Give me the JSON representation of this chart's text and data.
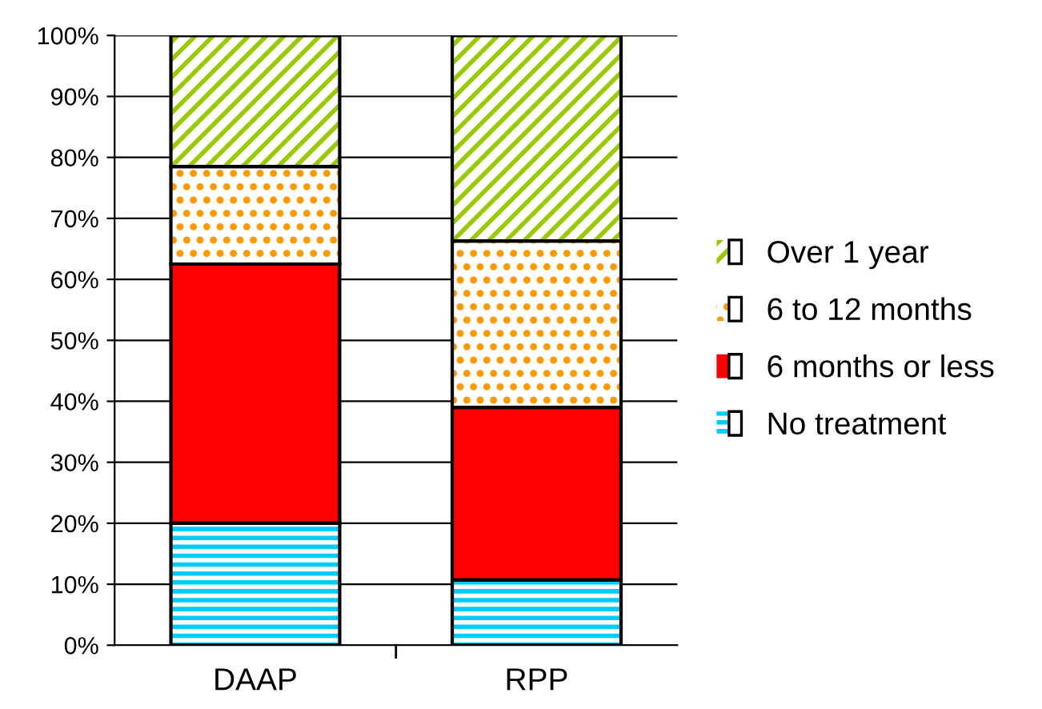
{
  "chart_data": {
    "type": "bar",
    "stacked": true,
    "categories": [
      "DAAP",
      "RPP"
    ],
    "series": [
      {
        "name": "No treatment",
        "color": "#00ccff",
        "values": [
          20,
          10.7
        ]
      },
      {
        "name": "6 months or less",
        "color": "#ff0000",
        "values": [
          42.5,
          28.3
        ]
      },
      {
        "name": "6 to 12 months",
        "color": "#ff9900",
        "values": [
          16,
          27.3
        ]
      },
      {
        "name": "Over 1 year",
        "color": "#99cc00",
        "values": [
          21.5,
          33.7
        ]
      }
    ],
    "ylim": [
      0,
      100
    ],
    "yticks": [
      {
        "value": 0,
        "label": "0%"
      },
      {
        "value": 10,
        "label": "10%"
      },
      {
        "value": 20,
        "label": "20%"
      },
      {
        "value": 30,
        "label": "30%"
      },
      {
        "value": 40,
        "label": "40%"
      },
      {
        "value": 50,
        "label": "50%"
      },
      {
        "value": 60,
        "label": "60%"
      },
      {
        "value": 70,
        "label": "70%"
      },
      {
        "value": 80,
        "label": "80%"
      },
      {
        "value": 90,
        "label": "90%"
      },
      {
        "value": 100,
        "label": "100%"
      }
    ],
    "grid": "y",
    "legend": "right"
  }
}
